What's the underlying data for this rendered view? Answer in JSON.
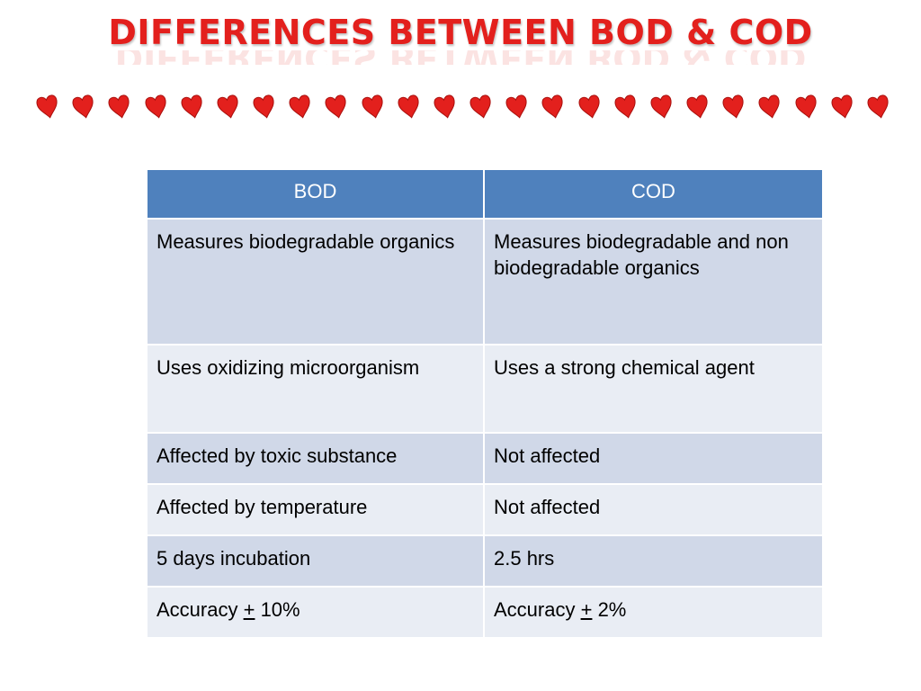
{
  "title": "DIFFERENCES BETWEEN BOD & COD",
  "decor": {
    "heart_count": 24,
    "heart_color": "#e3201d",
    "icon": "heart-icon"
  },
  "colors": {
    "title": "#e3201d",
    "header_bg": "#4f81bd",
    "row_dark": "#d0d8e8",
    "row_light": "#e9edf4"
  },
  "table": {
    "headers": [
      "BOD",
      "COD"
    ],
    "rows": [
      [
        "Measures biodegradable organics",
        "Measures biodegradable and non biodegradable organics"
      ],
      [
        "Uses oxidizing microorganism",
        "Uses a strong chemical agent"
      ],
      [
        "Affected by toxic substance",
        "Not affected"
      ],
      [
        "Affected by temperature",
        "Not affected"
      ],
      [
        "5 days incubation",
        "2.5 hrs"
      ],
      [
        {
          "prefix": "Accuracy ",
          "pm": "+",
          "suffix": " 10%"
        },
        {
          "prefix": "Accuracy ",
          "pm": "+",
          "suffix": " 2%"
        }
      ]
    ]
  }
}
